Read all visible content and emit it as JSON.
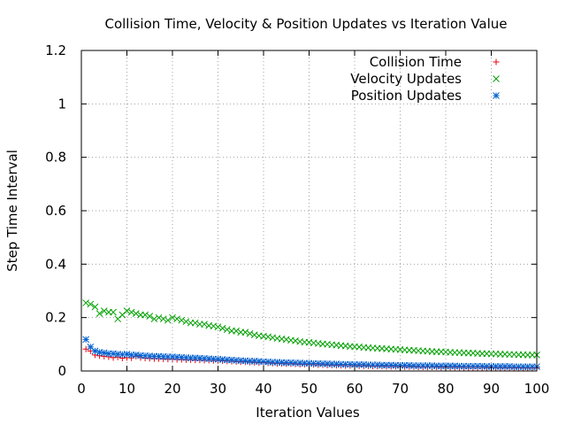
{
  "chart_data": {
    "type": "scatter",
    "title": "Collision Time, Velocity & Position Updates vs Iteration Value",
    "xlabel": "Iteration Values",
    "ylabel": "Step Time Interval",
    "xlim": [
      0,
      100
    ],
    "ylim": [
      0,
      1.2
    ],
    "xticks": [
      "0",
      "10",
      "20",
      "30",
      "40",
      "50",
      "60",
      "70",
      "80",
      "90",
      "100"
    ],
    "yticks": [
      "0",
      "0.2",
      "0.4",
      "0.6",
      "0.8",
      "1",
      "1.2"
    ],
    "grid": true,
    "legend_position": "top-right",
    "series": [
      {
        "name": "Collision Time",
        "color": "#e8000b",
        "marker": "plus",
        "x": [
          1,
          2,
          3,
          4,
          5,
          6,
          7,
          8,
          9,
          10,
          11,
          12,
          13,
          14,
          15,
          16,
          17,
          18,
          19,
          20,
          21,
          22,
          23,
          24,
          25,
          26,
          27,
          28,
          29,
          30,
          31,
          32,
          33,
          34,
          35,
          36,
          37,
          38,
          39,
          40,
          41,
          42,
          43,
          44,
          45,
          46,
          47,
          48,
          49,
          50,
          51,
          52,
          53,
          54,
          55,
          56,
          57,
          58,
          59,
          60,
          61,
          62,
          63,
          64,
          65,
          66,
          67,
          68,
          69,
          70,
          71,
          72,
          73,
          74,
          75,
          76,
          77,
          78,
          79,
          80,
          81,
          82,
          83,
          84,
          85,
          86,
          87,
          88,
          89,
          90,
          91,
          92,
          93,
          94,
          95,
          96,
          97,
          98,
          99,
          100
        ],
        "y": [
          0.082,
          0.075,
          0.06,
          0.057,
          0.055,
          0.053,
          0.05,
          0.052,
          0.048,
          0.05,
          0.049,
          0.055,
          0.05,
          0.048,
          0.047,
          0.046,
          0.046,
          0.045,
          0.044,
          0.045,
          0.043,
          0.043,
          0.042,
          0.042,
          0.041,
          0.041,
          0.04,
          0.04,
          0.039,
          0.039,
          0.038,
          0.037,
          0.036,
          0.035,
          0.034,
          0.034,
          0.033,
          0.032,
          0.031,
          0.031,
          0.03,
          0.029,
          0.028,
          0.028,
          0.027,
          0.027,
          0.026,
          0.025,
          0.025,
          0.024,
          0.024,
          0.023,
          0.023,
          0.022,
          0.022,
          0.021,
          0.021,
          0.02,
          0.02,
          0.02,
          0.019,
          0.019,
          0.019,
          0.018,
          0.018,
          0.018,
          0.017,
          0.017,
          0.017,
          0.016,
          0.016,
          0.016,
          0.016,
          0.015,
          0.015,
          0.015,
          0.015,
          0.015,
          0.014,
          0.014,
          0.014,
          0.014,
          0.014,
          0.013,
          0.013,
          0.013,
          0.013,
          0.013,
          0.013,
          0.012,
          0.012,
          0.012,
          0.012,
          0.012,
          0.012,
          0.012,
          0.011,
          0.011,
          0.011,
          0.011
        ]
      },
      {
        "name": "Velocity Updates",
        "color": "#00a000",
        "marker": "cross",
        "x": [
          1,
          2,
          3,
          4,
          5,
          6,
          7,
          8,
          9,
          10,
          11,
          12,
          13,
          14,
          15,
          16,
          17,
          18,
          19,
          20,
          21,
          22,
          23,
          24,
          25,
          26,
          27,
          28,
          29,
          30,
          31,
          32,
          33,
          34,
          35,
          36,
          37,
          38,
          39,
          40,
          41,
          42,
          43,
          44,
          45,
          46,
          47,
          48,
          49,
          50,
          51,
          52,
          53,
          54,
          55,
          56,
          57,
          58,
          59,
          60,
          61,
          62,
          63,
          64,
          65,
          66,
          67,
          68,
          69,
          70,
          71,
          72,
          73,
          74,
          75,
          76,
          77,
          78,
          79,
          80,
          81,
          82,
          83,
          84,
          85,
          86,
          87,
          88,
          89,
          90,
          91,
          92,
          93,
          94,
          95,
          96,
          97,
          98,
          99,
          100
        ],
        "y": [
          0.255,
          0.25,
          0.24,
          0.215,
          0.225,
          0.22,
          0.22,
          0.195,
          0.21,
          0.225,
          0.22,
          0.215,
          0.21,
          0.21,
          0.205,
          0.195,
          0.2,
          0.195,
          0.19,
          0.2,
          0.195,
          0.19,
          0.185,
          0.18,
          0.18,
          0.175,
          0.175,
          0.17,
          0.168,
          0.165,
          0.16,
          0.155,
          0.15,
          0.15,
          0.145,
          0.145,
          0.14,
          0.135,
          0.132,
          0.13,
          0.128,
          0.125,
          0.122,
          0.12,
          0.118,
          0.115,
          0.113,
          0.11,
          0.108,
          0.107,
          0.105,
          0.103,
          0.101,
          0.1,
          0.098,
          0.097,
          0.095,
          0.094,
          0.092,
          0.091,
          0.09,
          0.088,
          0.087,
          0.086,
          0.085,
          0.084,
          0.083,
          0.082,
          0.081,
          0.08,
          0.079,
          0.078,
          0.077,
          0.076,
          0.075,
          0.074,
          0.073,
          0.072,
          0.072,
          0.071,
          0.07,
          0.069,
          0.069,
          0.068,
          0.067,
          0.067,
          0.066,
          0.065,
          0.065,
          0.064,
          0.064,
          0.063,
          0.063,
          0.062,
          0.062,
          0.061,
          0.061,
          0.06,
          0.06,
          0.06
        ]
      },
      {
        "name": "Position Updates",
        "color": "#0060d0",
        "marker": "star",
        "x": [
          1,
          2,
          3,
          4,
          5,
          6,
          7,
          8,
          9,
          10,
          11,
          12,
          13,
          14,
          15,
          16,
          17,
          18,
          19,
          20,
          21,
          22,
          23,
          24,
          25,
          26,
          27,
          28,
          29,
          30,
          31,
          32,
          33,
          34,
          35,
          36,
          37,
          38,
          39,
          40,
          41,
          42,
          43,
          44,
          45,
          46,
          47,
          48,
          49,
          50,
          51,
          52,
          53,
          54,
          55,
          56,
          57,
          58,
          59,
          60,
          61,
          62,
          63,
          64,
          65,
          66,
          67,
          68,
          69,
          70,
          71,
          72,
          73,
          74,
          75,
          76,
          77,
          78,
          79,
          80,
          81,
          82,
          83,
          84,
          85,
          86,
          87,
          88,
          89,
          90,
          91,
          92,
          93,
          94,
          95,
          96,
          97,
          98,
          99,
          100
        ],
        "y": [
          0.118,
          0.09,
          0.075,
          0.07,
          0.068,
          0.065,
          0.065,
          0.063,
          0.062,
          0.063,
          0.06,
          0.06,
          0.058,
          0.057,
          0.056,
          0.055,
          0.055,
          0.054,
          0.053,
          0.053,
          0.052,
          0.051,
          0.05,
          0.049,
          0.049,
          0.048,
          0.047,
          0.046,
          0.045,
          0.044,
          0.043,
          0.042,
          0.041,
          0.04,
          0.039,
          0.038,
          0.037,
          0.037,
          0.036,
          0.035,
          0.034,
          0.033,
          0.033,
          0.032,
          0.031,
          0.031,
          0.03,
          0.03,
          0.029,
          0.029,
          0.028,
          0.028,
          0.027,
          0.027,
          0.026,
          0.026,
          0.025,
          0.025,
          0.025,
          0.024,
          0.024,
          0.024,
          0.023,
          0.023,
          0.023,
          0.022,
          0.022,
          0.022,
          0.021,
          0.021,
          0.021,
          0.021,
          0.02,
          0.02,
          0.02,
          0.02,
          0.02,
          0.019,
          0.019,
          0.019,
          0.019,
          0.019,
          0.018,
          0.018,
          0.018,
          0.018,
          0.018,
          0.018,
          0.017,
          0.017,
          0.017,
          0.017,
          0.017,
          0.017,
          0.016,
          0.016,
          0.016,
          0.016,
          0.016,
          0.016
        ]
      }
    ]
  }
}
